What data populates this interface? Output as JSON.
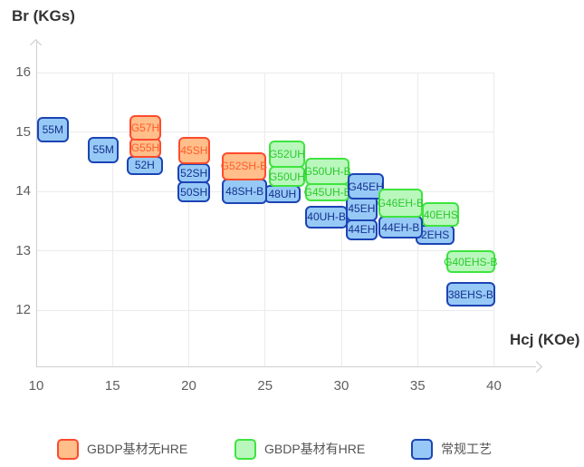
{
  "colors": {
    "orange": {
      "fill": "#ffbe8a",
      "border": "#ff4b2e",
      "text": "#ff5c2b"
    },
    "green": {
      "fill": "#b9f7bd",
      "border": "#3fe43f",
      "text": "#2dc92d"
    },
    "blue": {
      "fill": "#97c9f6",
      "border": "#1c44b4",
      "text": "#15318f"
    },
    "axis_line": "#cfcfcf",
    "grid_line": "#ebebeb",
    "tick_text": "#5e5e5e",
    "axis_title_text": "#333333",
    "legend_text": "#555555"
  },
  "legend": {
    "items": [
      {
        "label": "GBDP基材无HRE",
        "color_key": "orange"
      },
      {
        "label": "GBDP基材有HRE",
        "color_key": "green"
      },
      {
        "label": "常规工艺",
        "color_key": "blue"
      }
    ]
  },
  "chart_data": {
    "type": "scatter",
    "mark_shape": "labeled-rounded-rect",
    "title": "",
    "xlabel": "Hcj (KOe)",
    "ylabel": "Br (KGs)",
    "xlim": [
      10,
      43
    ],
    "ylim": [
      11.1,
      16.5
    ],
    "x_ticks": [
      10,
      15,
      20,
      25,
      30,
      35,
      40
    ],
    "y_ticks": [
      16,
      15,
      14,
      13,
      12
    ],
    "grid": true,
    "legend_position": "bottom",
    "series": [
      {
        "name": "GBDP基材无HRE",
        "color_key": "orange",
        "items": [
          {
            "label": "G57H",
            "hcj": [
              16.1,
              18.2
            ],
            "br": [
              14.85,
              15.29
            ],
            "z": 6
          },
          {
            "label": "G55H",
            "hcj": [
              16.1,
              18.2
            ],
            "br": [
              14.56,
              14.9
            ],
            "z": 5
          },
          {
            "label": "45SH",
            "hcj": [
              19.3,
              21.4
            ],
            "br": [
              14.45,
              14.91
            ],
            "z": 6
          },
          {
            "label": "G52SH-B",
            "hcj": [
              22.16,
              25.07
            ],
            "br": [
              14.19,
              14.66
            ],
            "z": 6
          }
        ]
      },
      {
        "name": "GBDP基材有HRE",
        "color_key": "green",
        "items": [
          {
            "label": "G52UH",
            "hcj": [
              25.25,
              27.62
            ],
            "br": [
              14.4,
              14.86
            ],
            "z": 6
          },
          {
            "label": "G50UH",
            "hcj": [
              25.25,
              27.62
            ],
            "br": [
              14.07,
              14.43
            ],
            "z": 5
          },
          {
            "label": "G50UH-B",
            "hcj": [
              27.65,
              30.53
            ],
            "br": [
              14.11,
              14.56
            ],
            "z": 6
          },
          {
            "label": "G45UH-B",
            "hcj": [
              27.65,
              30.53
            ],
            "br": [
              13.83,
              14.14
            ],
            "z": 5
          },
          {
            "label": "G46EH-B",
            "hcj": [
              32.43,
              35.33
            ],
            "br": [
              13.56,
              14.04
            ],
            "z": 8
          },
          {
            "label": "40EHS",
            "hcj": [
              35.3,
              37.74
            ],
            "br": [
              13.4,
              13.82
            ],
            "z": 5
          },
          {
            "label": "G40EHS-B",
            "hcj": [
              36.88,
              40.08
            ],
            "br": [
              12.62,
              13.01
            ],
            "z": 5
          }
        ]
      },
      {
        "name": "常规工艺",
        "color_key": "blue",
        "items": [
          {
            "label": "55M",
            "hcj": [
              10.05,
              12.13
            ],
            "br": [
              14.82,
              15.25
            ],
            "z": 3
          },
          {
            "label": "55M",
            "hcj": [
              13.38,
              15.42
            ],
            "br": [
              14.48,
              14.91
            ],
            "z": 3
          },
          {
            "label": "52H",
            "hcj": [
              15.93,
              18.3
            ],
            "br": [
              14.27,
              14.6
            ],
            "z": 4
          },
          {
            "label": "52SH",
            "hcj": [
              19.28,
              21.39
            ],
            "br": [
              14.14,
              14.47
            ],
            "z": 5
          },
          {
            "label": "50SH",
            "hcj": [
              19.28,
              21.39
            ],
            "br": [
              13.81,
              14.17
            ],
            "z": 4
          },
          {
            "label": "48SH-B",
            "hcj": [
              22.16,
              25.16
            ],
            "br": [
              13.79,
              14.22
            ],
            "z": 5
          },
          {
            "label": "48UH",
            "hcj": [
              24.95,
              27.32
            ],
            "br": [
              13.8,
              14.11
            ],
            "z": 3
          },
          {
            "label": "40UH-B",
            "hcj": [
              27.65,
              30.41
            ],
            "br": [
              13.38,
              13.76
            ],
            "z": 4
          },
          {
            "label": "G45EH",
            "hcj": [
              30.44,
              32.78
            ],
            "br": [
              13.86,
              14.3
            ],
            "z": 7
          },
          {
            "label": "45EH",
            "hcj": [
              30.29,
              32.37
            ],
            "br": [
              13.5,
              13.92
            ],
            "z": 3
          },
          {
            "label": "44EH",
            "hcj": [
              30.29,
              32.37
            ],
            "br": [
              13.18,
              13.53
            ],
            "z": 2
          },
          {
            "label": "44EH-B",
            "hcj": [
              32.43,
              35.33
            ],
            "br": [
              13.2,
              13.59
            ],
            "z": 6
          },
          {
            "label": "2EHS",
            "hcj": [
              34.89,
              37.41
            ],
            "br": [
              13.1,
              13.44
            ],
            "z": 4
          },
          {
            "label": "38EHS-B",
            "hcj": [
              36.88,
              40.08
            ],
            "br": [
              12.06,
              12.47
            ],
            "z": 4
          }
        ]
      }
    ]
  }
}
